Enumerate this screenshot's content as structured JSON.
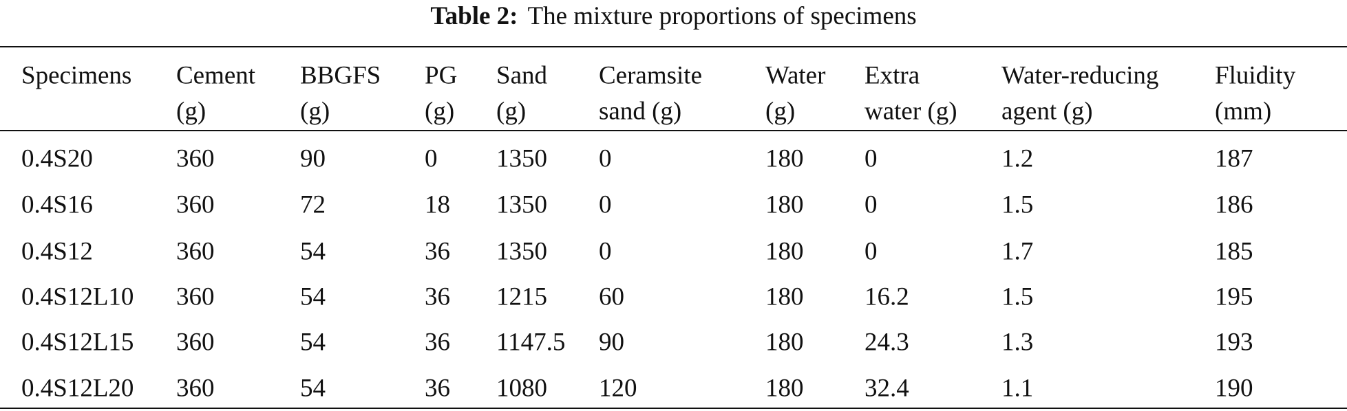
{
  "caption": {
    "label": "Table 2:",
    "text": "The mixture proportions of specimens"
  },
  "table": {
    "header": [
      [
        "Specimens"
      ],
      [
        "Cement",
        "(g)"
      ],
      [
        "BBGFS",
        "(g)"
      ],
      [
        "PG",
        "(g)"
      ],
      [
        "Sand",
        "(g)"
      ],
      [
        "Ceramsite",
        "sand (g)"
      ],
      [
        "Water",
        "(g)"
      ],
      [
        "Extra",
        "water (g)"
      ],
      [
        "Water-reducing",
        "agent (g)"
      ],
      [
        "Fluidity",
        "(mm)"
      ]
    ],
    "rows": [
      [
        "0.4S20",
        "360",
        "90",
        "0",
        "1350",
        "0",
        "180",
        "0",
        "1.2",
        "187"
      ],
      [
        "0.4S16",
        "360",
        "72",
        "18",
        "1350",
        "0",
        "180",
        "0",
        "1.5",
        "186"
      ],
      [
        "0.4S12",
        "360",
        "54",
        "36",
        "1350",
        "0",
        "180",
        "0",
        "1.7",
        "185"
      ],
      [
        "0.4S12L10",
        "360",
        "54",
        "36",
        "1215",
        "60",
        "180",
        "16.2",
        "1.5",
        "195"
      ],
      [
        "0.4S12L15",
        "360",
        "54",
        "36",
        "1147.5",
        "90",
        "180",
        "24.3",
        "1.3",
        "193"
      ],
      [
        "0.4S12L20",
        "360",
        "54",
        "36",
        "1080",
        "120",
        "180",
        "32.4",
        "1.1",
        "190"
      ]
    ]
  }
}
